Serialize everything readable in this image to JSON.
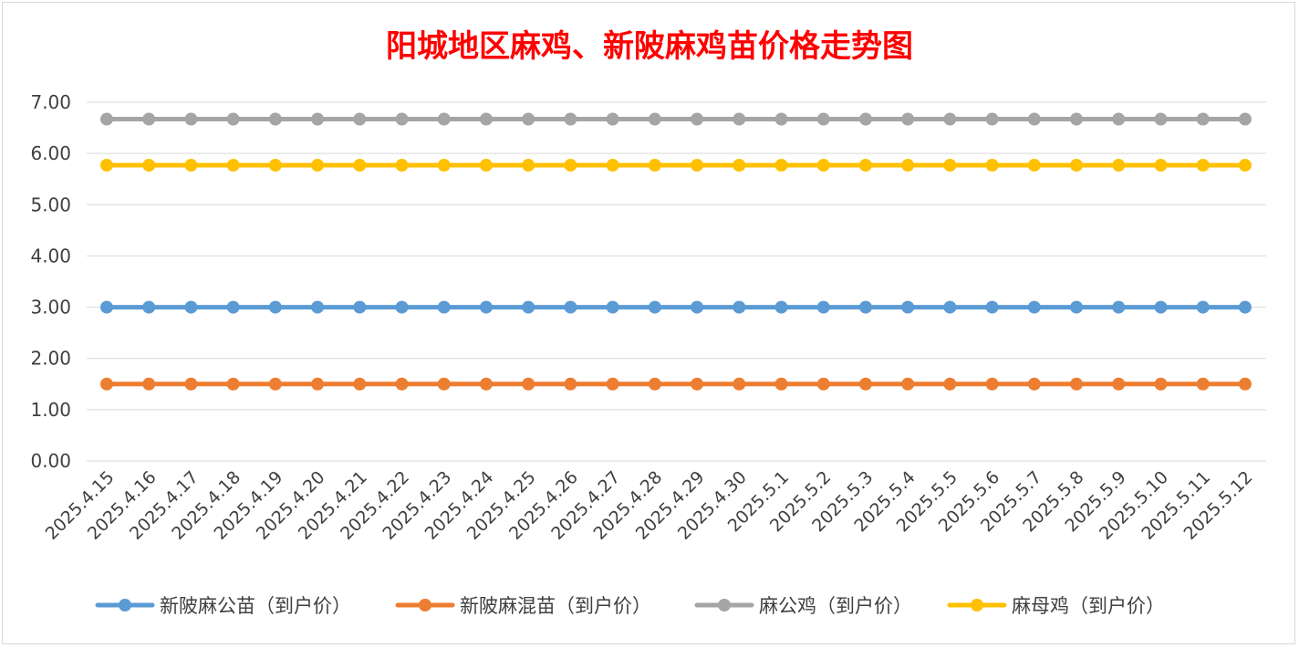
{
  "chart_data": {
    "type": "line",
    "title": "阳城地区麻鸡、新陂麻鸡苗价格走势图",
    "xlabel": "",
    "ylabel": "",
    "ylim": [
      0,
      7
    ],
    "yticks": [
      "0.00",
      "1.00",
      "2.00",
      "3.00",
      "4.00",
      "5.00",
      "6.00",
      "7.00"
    ],
    "grid": true,
    "legend_position": "bottom",
    "categories": [
      "2025.4.15",
      "2025.4.16",
      "2025.4.17",
      "2025.4.18",
      "2025.4.19",
      "2025.4.20",
      "2025.4.21",
      "2025.4.22",
      "2025.4.23",
      "2025.4.24",
      "2025.4.25",
      "2025.4.26",
      "2025.4.27",
      "2025.4.28",
      "2025.4.29",
      "2025.4.30",
      "2025.5.1",
      "2025.5.2",
      "2025.5.3",
      "2025.5.4",
      "2025.5.5",
      "2025.5.6",
      "2025.5.7",
      "2025.5.8",
      "2025.5.9",
      "2025.5.10",
      "2025.5.11",
      "2025.5.12"
    ],
    "series": [
      {
        "name": "新陂麻公苗（到户价）",
        "color": "#5b9bd5",
        "values": [
          3.0,
          3.0,
          3.0,
          3.0,
          3.0,
          3.0,
          3.0,
          3.0,
          3.0,
          3.0,
          3.0,
          3.0,
          3.0,
          3.0,
          3.0,
          3.0,
          3.0,
          3.0,
          3.0,
          3.0,
          3.0,
          3.0,
          3.0,
          3.0,
          3.0,
          3.0,
          3.0,
          3.0
        ]
      },
      {
        "name": "新陂麻混苗（到户价）",
        "color": "#ed7d31",
        "values": [
          1.5,
          1.5,
          1.5,
          1.5,
          1.5,
          1.5,
          1.5,
          1.5,
          1.5,
          1.5,
          1.5,
          1.5,
          1.5,
          1.5,
          1.5,
          1.5,
          1.5,
          1.5,
          1.5,
          1.5,
          1.5,
          1.5,
          1.5,
          1.5,
          1.5,
          1.5,
          1.5,
          1.5
        ]
      },
      {
        "name": "麻公鸡（到户价）",
        "color": "#a5a5a5",
        "values": [
          6.67,
          6.67,
          6.67,
          6.67,
          6.67,
          6.67,
          6.67,
          6.67,
          6.67,
          6.67,
          6.67,
          6.67,
          6.67,
          6.67,
          6.67,
          6.67,
          6.67,
          6.67,
          6.67,
          6.67,
          6.67,
          6.67,
          6.67,
          6.67,
          6.67,
          6.67,
          6.67,
          6.67
        ]
      },
      {
        "name": "麻母鸡（到户价）",
        "color": "#ffc000",
        "values": [
          5.77,
          5.77,
          5.77,
          5.77,
          5.77,
          5.77,
          5.77,
          5.77,
          5.77,
          5.77,
          5.77,
          5.77,
          5.77,
          5.77,
          5.77,
          5.77,
          5.77,
          5.77,
          5.77,
          5.77,
          5.77,
          5.77,
          5.77,
          5.77,
          5.77,
          5.77,
          5.77,
          5.77
        ]
      }
    ]
  }
}
